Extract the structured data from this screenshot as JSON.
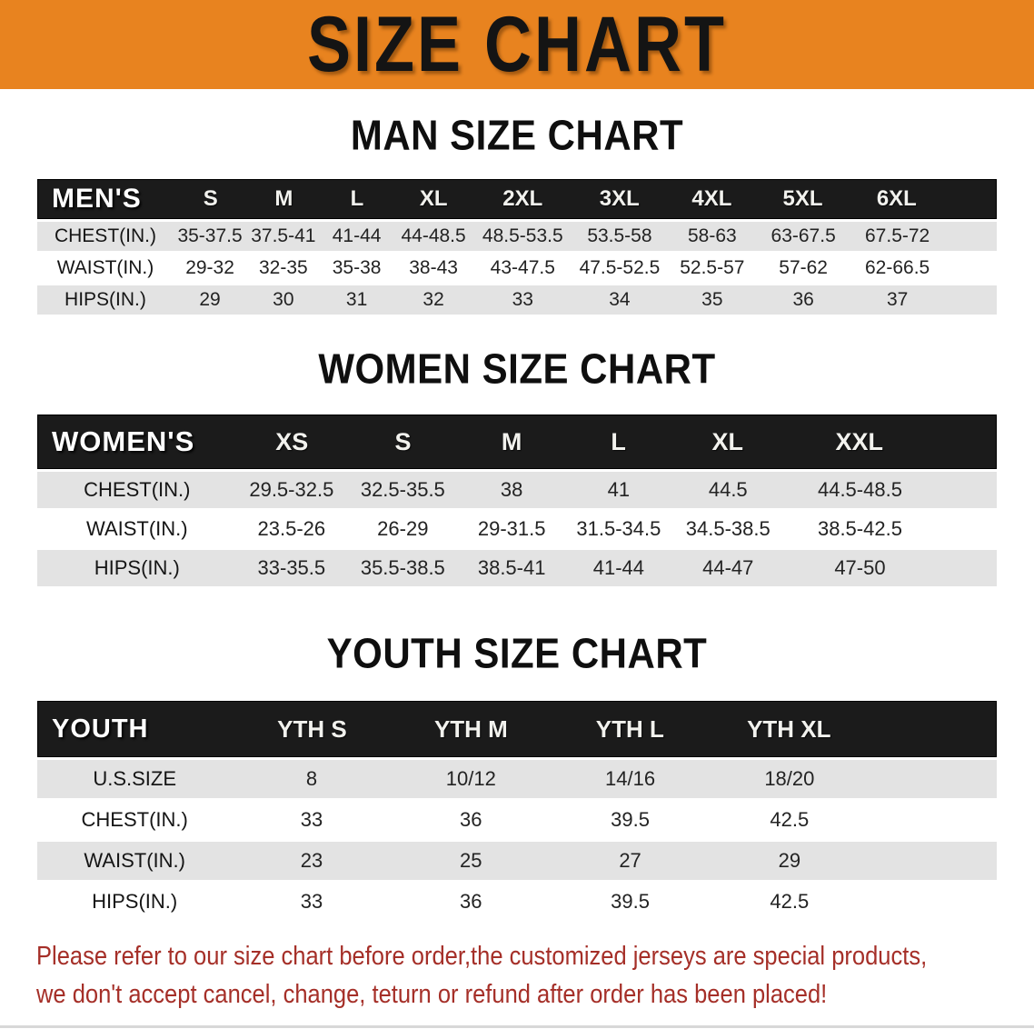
{
  "banner": {
    "title": "SIZE CHART"
  },
  "headings": {
    "men": "MAN SIZE CHART",
    "women": "WOMEN SIZE CHART",
    "youth": "YOUTH SIZE CHART"
  },
  "tables": {
    "men": {
      "corner": "MEN'S",
      "sizes": [
        "S",
        "M",
        "L",
        "XL",
        "2XL",
        "3XL",
        "4XL",
        "5XL",
        "6XL"
      ],
      "rows": [
        {
          "label": "CHEST(IN.)",
          "values": [
            "35-37.5",
            "37.5-41",
            "41-44",
            "44-48.5",
            "48.5-53.5",
            "53.5-58",
            "58-63",
            "63-67.5",
            "67.5-72"
          ]
        },
        {
          "label": "WAIST(IN.)",
          "values": [
            "29-32",
            "32-35",
            "35-38",
            "38-43",
            "43-47.5",
            "47.5-52.5",
            "52.5-57",
            "57-62",
            "62-66.5"
          ]
        },
        {
          "label": "HIPS(IN.)",
          "values": [
            "29",
            "30",
            "31",
            "32",
            "33",
            "34",
            "35",
            "36",
            "37"
          ]
        }
      ]
    },
    "women": {
      "corner": "WOMEN'S",
      "sizes": [
        "XS",
        "S",
        "M",
        "L",
        "XL",
        "XXL"
      ],
      "rows": [
        {
          "label": "CHEST(IN.)",
          "values": [
            "29.5-32.5",
            "32.5-35.5",
            "38",
            "41",
            "44.5",
            "44.5-48.5"
          ]
        },
        {
          "label": "WAIST(IN.)",
          "values": [
            "23.5-26",
            "26-29",
            "29-31.5",
            "31.5-34.5",
            "34.5-38.5",
            "38.5-42.5"
          ]
        },
        {
          "label": "HIPS(IN.)",
          "values": [
            "33-35.5",
            "35.5-38.5",
            "38.5-41",
            "41-44",
            "44-47",
            "47-50"
          ]
        }
      ]
    },
    "youth": {
      "corner": "YOUTH",
      "sizes": [
        "YTH S",
        "YTH M",
        "YTH L",
        "YTH XL"
      ],
      "rows": [
        {
          "label": "U.S.SIZE",
          "values": [
            "8",
            "10/12",
            "14/16",
            "18/20"
          ]
        },
        {
          "label": "CHEST(IN.)",
          "values": [
            "33",
            "36",
            "39.5",
            "42.5"
          ]
        },
        {
          "label": "WAIST(IN.)",
          "values": [
            "23",
            "25",
            "27",
            "29"
          ]
        },
        {
          "label": "HIPS(IN.)",
          "values": [
            "33",
            "36",
            "39.5",
            "42.5"
          ]
        }
      ]
    }
  },
  "note": {
    "line1": "Please refer to our size chart before order,the customized jerseys are special products,",
    "line2": "we don't accept cancel, change, teturn or refund after order has been placed!",
    "color": "#A52F28"
  },
  "colors": {
    "banner_orange": "#E8831F",
    "bar_black": "#1B1B1B",
    "row_gray": "#E3E3E3",
    "row_white": "#FFFFFF"
  }
}
